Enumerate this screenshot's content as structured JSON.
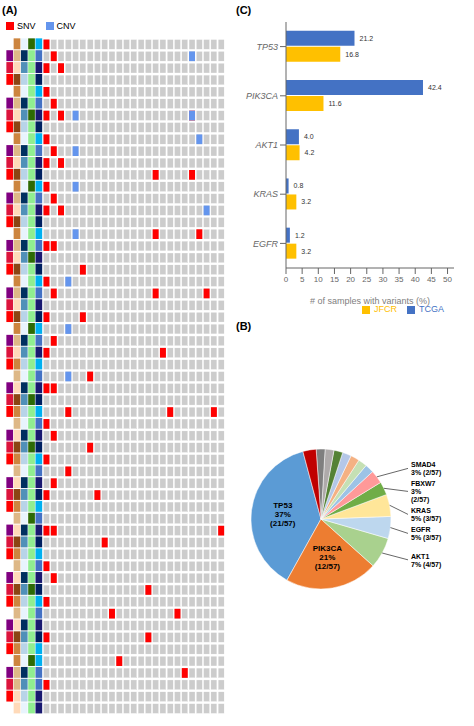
{
  "chart_data": [
    {
      "type": "heatmap",
      "title": "(A)",
      "rows": 57,
      "columns": 25,
      "color": "#CCCCCC",
      "tick_labels": false,
      "legend": "upper left",
      "strips": [
        {
          "colors": [
            "#FFFFFF",
            "#FF0000",
            "#DC143C",
            "#800080"
          ],
          "values": [
            0,
            1,
            2,
            3,
            0,
            1,
            2,
            3,
            0,
            1,
            2,
            3,
            0,
            1,
            2,
            3,
            0,
            1,
            2,
            3,
            0,
            1,
            2,
            3,
            0,
            1,
            2,
            3,
            0,
            1,
            2,
            3,
            0,
            1,
            2,
            3,
            0,
            1,
            2,
            3,
            0,
            1,
            2,
            3,
            0,
            1,
            2,
            3,
            0,
            1,
            2,
            3,
            0,
            1,
            2,
            3,
            0
          ]
        },
        {
          "colors": [
            "#FFDAB9",
            "#DEB887",
            "#CD853F",
            "#8B4513"
          ],
          "values": [
            0,
            0,
            1,
            1,
            2,
            2,
            3,
            0,
            1,
            2,
            3,
            0,
            1,
            2,
            3,
            0,
            1,
            2,
            3,
            0,
            1,
            2,
            3,
            0,
            1,
            2,
            3,
            0,
            1,
            2,
            0,
            1,
            2,
            3,
            0,
            1,
            2,
            3,
            0,
            1,
            2,
            3,
            0,
            1,
            2,
            3,
            0,
            1,
            2,
            3,
            0,
            1,
            2,
            3,
            0,
            1,
            2
          ]
        },
        {
          "colors": [
            "#E8F4FD",
            "#B8D4E8",
            "#5090B8",
            "#003060"
          ],
          "values": [
            0,
            1,
            2,
            3,
            0,
            1,
            2,
            3,
            0,
            1,
            2,
            3,
            0,
            1,
            2,
            3,
            0,
            1,
            2,
            3,
            0,
            1,
            2,
            3,
            0,
            1,
            2,
            3,
            0,
            1,
            2,
            3,
            0,
            1,
            2,
            3,
            0,
            1,
            2,
            3,
            0,
            1,
            2,
            3,
            0,
            1,
            2,
            3,
            0,
            1,
            2,
            3,
            0,
            1,
            2,
            3,
            0
          ]
        },
        {
          "colors": [
            "#90EE90",
            "#2D6A04"
          ],
          "values": [
            0,
            0,
            0,
            0,
            1,
            0,
            0,
            0,
            0,
            0,
            1,
            0,
            0,
            0,
            0,
            0,
            1,
            0,
            0,
            0,
            0,
            0,
            1,
            0,
            0,
            0,
            1,
            0,
            0,
            0,
            0,
            0,
            1,
            0,
            0,
            0,
            0,
            0,
            1,
            0,
            0,
            0,
            0,
            0,
            1,
            0,
            0,
            0,
            0,
            0,
            1,
            0,
            0,
            0,
            0,
            0,
            1
          ]
        },
        {
          "colors": [
            "#191970",
            "#4472C4",
            "#00B0F0",
            "#002060"
          ],
          "values": [
            0,
            0,
            1,
            1,
            2,
            2,
            3,
            0,
            1,
            2,
            3,
            0,
            1,
            2,
            3,
            0,
            1,
            2,
            3,
            0,
            1,
            2,
            3,
            0,
            1,
            2,
            3,
            0,
            1,
            2,
            0,
            1,
            2,
            3,
            0,
            1,
            2,
            3,
            0,
            1,
            2,
            3,
            0,
            1,
            2,
            3,
            0,
            1,
            2,
            3,
            0,
            1,
            2,
            3,
            0,
            1,
            2
          ]
        }
      ],
      "series": [
        {
          "name": "SNV",
          "color": "#FF0000",
          "cells": [
            [
              0,
              56
            ],
            [
              0,
              54
            ],
            [
              0,
              52
            ],
            [
              0,
              50
            ],
            [
              0,
              48
            ],
            [
              0,
              46
            ],
            [
              0,
              44
            ],
            [
              0,
              42
            ],
            [
              0,
              39
            ],
            [
              0,
              36
            ],
            [
              0,
              33
            ],
            [
              0,
              30
            ],
            [
              0,
              27
            ],
            [
              0,
              24
            ],
            [
              0,
              21
            ],
            [
              0,
              18
            ],
            [
              0,
              15
            ],
            [
              0,
              12
            ],
            [
              0,
              9
            ],
            [
              0,
              6
            ],
            [
              0,
              2
            ],
            [
              1,
              55
            ],
            [
              1,
              51
            ],
            [
              1,
              47
            ],
            [
              1,
              43
            ],
            [
              1,
              39
            ],
            [
              1,
              35
            ],
            [
              1,
              31
            ],
            [
              1,
              27
            ],
            [
              1,
              23
            ],
            [
              1,
              19
            ],
            [
              1,
              15
            ],
            [
              1,
              11
            ],
            [
              2,
              54
            ],
            [
              2,
              50
            ],
            [
              2,
              46
            ],
            [
              2,
              42
            ],
            [
              5,
              37
            ],
            [
              5,
              33
            ],
            [
              6,
              28
            ],
            [
              6,
              22
            ],
            [
              7,
              18
            ],
            [
              8,
              14
            ],
            [
              9,
              8
            ],
            [
              10,
              4
            ],
            [
              3,
              25
            ],
            [
              3,
              20
            ],
            [
              14,
              10
            ],
            [
              14,
              6
            ],
            [
              15,
              45
            ],
            [
              15,
              40
            ],
            [
              15,
              35
            ],
            [
              16,
              30
            ],
            [
              17,
              25
            ],
            [
              18,
              8
            ],
            [
              19,
              3
            ],
            [
              20,
              50
            ],
            [
              20,
              45
            ],
            [
              21,
              40
            ],
            [
              22,
              35
            ],
            [
              23,
              25
            ],
            [
              24,
              15
            ]
          ]
        },
        {
          "name": "CNV",
          "color": "#6495ED",
          "cells": [
            [
              3,
              36
            ],
            [
              3,
              32
            ],
            [
              3,
              28
            ],
            [
              4,
              50
            ],
            [
              4,
              47
            ],
            [
              4,
              44
            ],
            [
              4,
              40
            ],
            [
              20,
              55
            ],
            [
              20,
              50
            ],
            [
              21,
              48
            ],
            [
              22,
              42
            ]
          ]
        }
      ]
    },
    {
      "type": "bar",
      "title": "(C)",
      "orientation": "horizontal",
      "categories": [
        "TP53",
        "PIK3CA",
        "AKT1",
        "KRAS",
        "EGFR"
      ],
      "series": [
        {
          "name": "TCGA",
          "color": "#4472C4",
          "values": [
            21.2,
            42.4,
            4.0,
            0.8,
            1.2
          ],
          "value_labels": [
            "21.2",
            "42.4",
            "4.0",
            "0.8",
            "1.2"
          ]
        },
        {
          "name": "JFCR",
          "color": "#FFC000",
          "values": [
            16.8,
            11.6,
            4.2,
            3.2,
            3.2
          ],
          "value_labels": [
            "16.8",
            "11.6",
            "4.2",
            "3.2",
            "3.2"
          ]
        }
      ],
      "xlabel": "# of samples with variants (%)",
      "xlim": [
        0,
        52
      ],
      "xticks": [
        0,
        5,
        10,
        15,
        20,
        25,
        30,
        35,
        40,
        45,
        50
      ],
      "data_labels": true,
      "legend": "lower right"
    },
    {
      "type": "pie",
      "title": "(B)",
      "values": [
        37,
        21,
        7,
        5,
        5,
        3,
        3,
        2,
        2,
        2,
        2,
        2,
        2,
        2,
        3
      ],
      "colors": [
        "#5B9BD5",
        "#ED7D31",
        "#A9D18E",
        "#BDD7EE",
        "#FFE699",
        "#70AD47",
        "#FF9999",
        "#9DC3E6",
        "#C5E0B4",
        "#F4B183",
        "#B4C7E7",
        "#548235",
        "#AEAAAA",
        "#7F7F7F",
        "#C00000"
      ],
      "categories": [
        "TP53\n37%\n(21/57)",
        "PIK3CA\n21%\n(12/57)",
        "AKT1\n7% (4/57)",
        "EGFR\n5% (3/57)",
        "KRAS\n5% (3/57)",
        "FBXW7\n3%\n(2/57)",
        "SMAD4\n3% (2/57)",
        null,
        null,
        null,
        null,
        null,
        null,
        null,
        null
      ]
    }
  ]
}
